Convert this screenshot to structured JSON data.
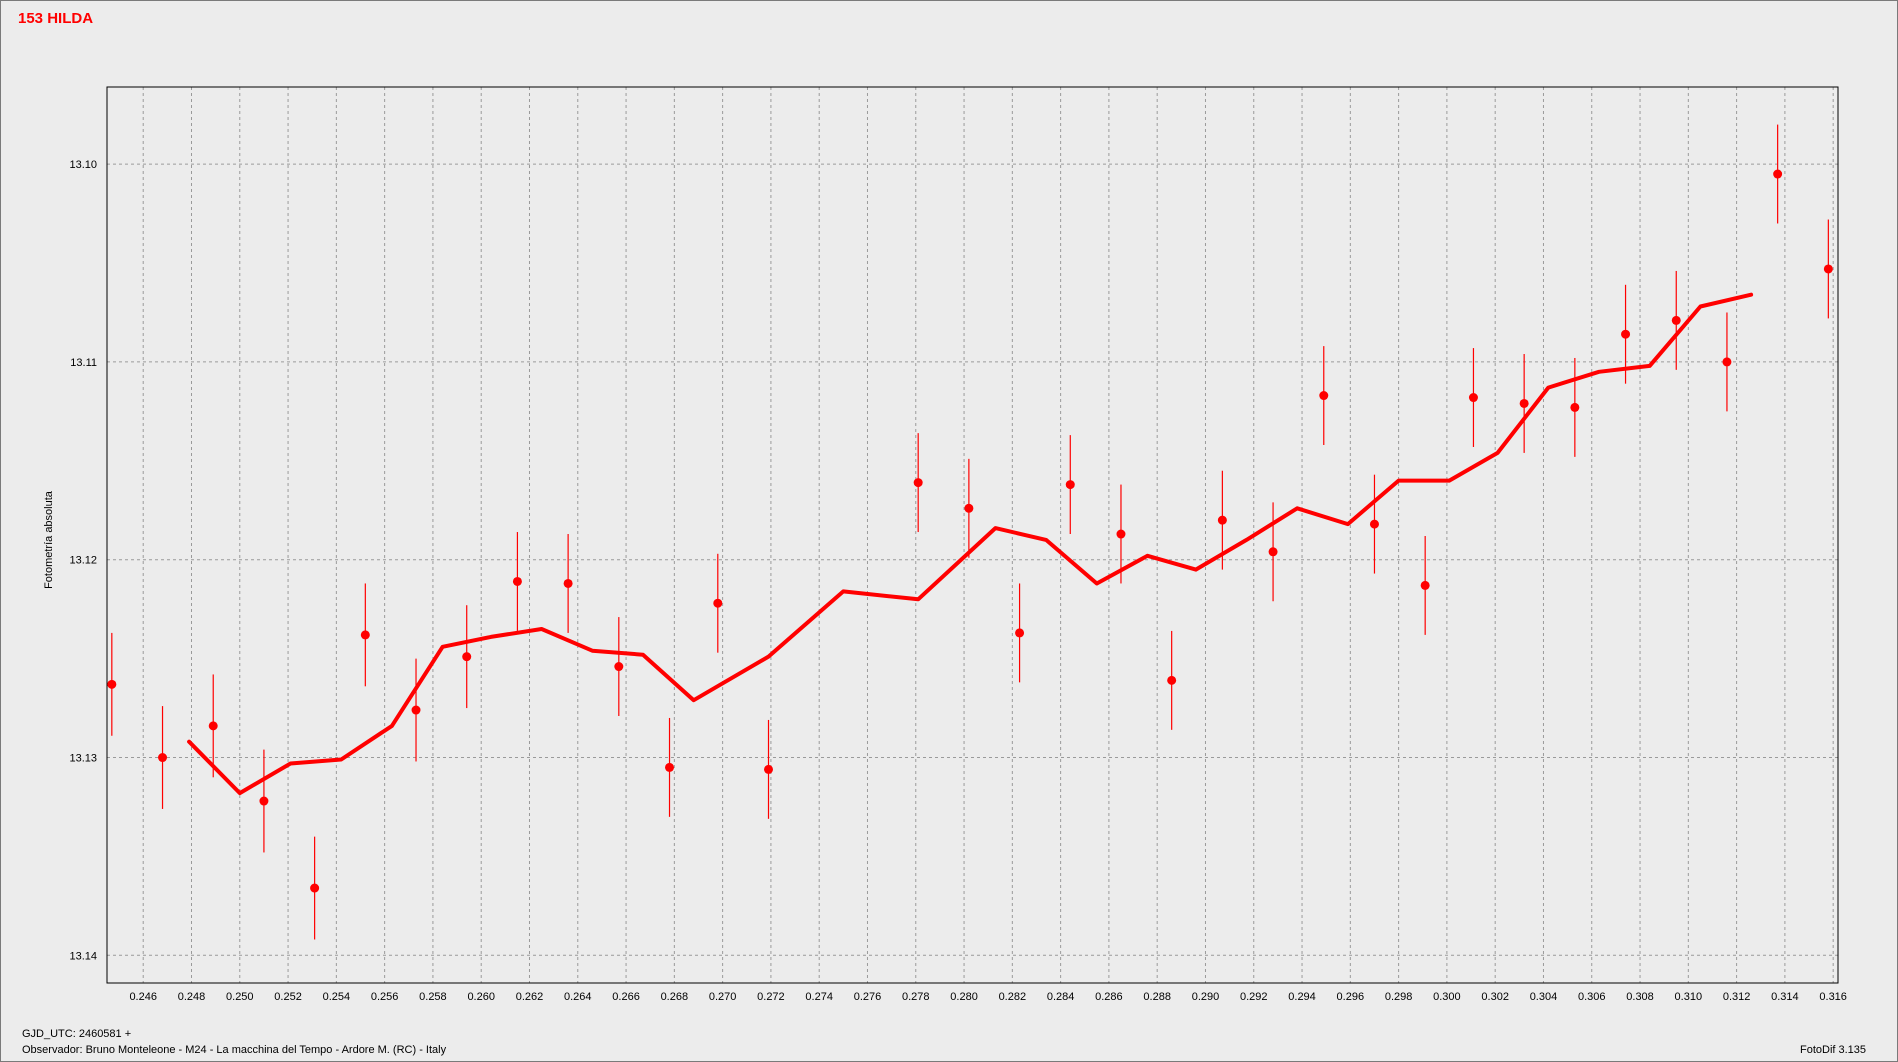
{
  "window": {
    "title": "153 HILDA"
  },
  "footer": {
    "date": "GJD_UTC: 2460581 +",
    "observer": "Observador: Bruno Monteleone - M24 - La macchina del Tempo - Ardore M. (RC) - Italy",
    "software": "FotoDif 3.135"
  },
  "colors": {
    "series": "#ff0000",
    "grid": "#9a9a9a",
    "plot_bg": "#ececec"
  },
  "chart_data": {
    "type": "scatter",
    "title": "153 HILDA",
    "xlabel": "GJD_UTC: 2460581 +",
    "ylabel": "Fotometría absoluta",
    "xlim": [
      0.2445,
      0.3162
    ],
    "ylim": [
      13.1414,
      13.0961
    ],
    "y_inverted": true,
    "grid": true,
    "x_ticks": [
      "0.246",
      "0.248",
      "0.250",
      "0.252",
      "0.254",
      "0.256",
      "0.258",
      "0.260",
      "0.262",
      "0.264",
      "0.266",
      "0.268",
      "0.270",
      "0.272",
      "0.274",
      "0.276",
      "0.278",
      "0.280",
      "0.282",
      "0.284",
      "0.286",
      "0.288",
      "0.290",
      "0.292",
      "0.294",
      "0.296",
      "0.298",
      "0.300",
      "0.302",
      "0.304",
      "0.306",
      "0.308",
      "0.310",
      "0.312",
      "0.314",
      "0.316"
    ],
    "y_ticks": [
      "13.10",
      "13.11",
      "13.12",
      "13.13",
      "13.14"
    ],
    "series": [
      {
        "type": "scatter_errorbar",
        "color": "#ff0000",
        "points": [
          {
            "x": 0.2447,
            "y": 13.1263,
            "err": 0.0026
          },
          {
            "x": 0.2468,
            "y": 13.13,
            "err": 0.0026
          },
          {
            "x": 0.2489,
            "y": 13.1284,
            "err": 0.0026
          },
          {
            "x": 0.251,
            "y": 13.1322,
            "err": 0.0026
          },
          {
            "x": 0.2531,
            "y": 13.1366,
            "err": 0.0026
          },
          {
            "x": 0.2552,
            "y": 13.1238,
            "err": 0.0026
          },
          {
            "x": 0.2573,
            "y": 13.1276,
            "err": 0.0026
          },
          {
            "x": 0.2594,
            "y": 13.1249,
            "err": 0.0026
          },
          {
            "x": 0.2615,
            "y": 13.1211,
            "err": 0.0025
          },
          {
            "x": 0.2636,
            "y": 13.1212,
            "err": 0.0025
          },
          {
            "x": 0.2657,
            "y": 13.1254,
            "err": 0.0025
          },
          {
            "x": 0.2678,
            "y": 13.1305,
            "err": 0.0025
          },
          {
            "x": 0.2698,
            "y": 13.1222,
            "err": 0.0025
          },
          {
            "x": 0.2719,
            "y": 13.1306,
            "err": 0.0025
          },
          {
            "x": 0.2781,
            "y": 13.1161,
            "err": 0.0025
          },
          {
            "x": 0.2802,
            "y": 13.1174,
            "err": 0.0025
          },
          {
            "x": 0.2823,
            "y": 13.1237,
            "err": 0.0025
          },
          {
            "x": 0.2844,
            "y": 13.1162,
            "err": 0.0025
          },
          {
            "x": 0.2865,
            "y": 13.1187,
            "err": 0.0025
          },
          {
            "x": 0.2886,
            "y": 13.1261,
            "err": 0.0025
          },
          {
            "x": 0.2907,
            "y": 13.118,
            "err": 0.0025
          },
          {
            "x": 0.2928,
            "y": 13.1196,
            "err": 0.0025
          },
          {
            "x": 0.2949,
            "y": 13.1117,
            "err": 0.0025
          },
          {
            "x": 0.297,
            "y": 13.1182,
            "err": 0.0025
          },
          {
            "x": 0.2991,
            "y": 13.1213,
            "err": 0.0025
          },
          {
            "x": 0.3011,
            "y": 13.1118,
            "err": 0.0025
          },
          {
            "x": 0.3032,
            "y": 13.1121,
            "err": 0.0025
          },
          {
            "x": 0.3053,
            "y": 13.1123,
            "err": 0.0025
          },
          {
            "x": 0.3074,
            "y": 13.1086,
            "err": 0.0025
          },
          {
            "x": 0.3095,
            "y": 13.1079,
            "err": 0.0025
          },
          {
            "x": 0.3116,
            "y": 13.11,
            "err": 0.0025
          },
          {
            "x": 0.3137,
            "y": 13.1005,
            "err": 0.0025
          },
          {
            "x": 0.3158,
            "y": 13.1053,
            "err": 0.0025
          }
        ]
      },
      {
        "type": "line",
        "color": "#ff0000",
        "points": [
          {
            "x": 0.2479,
            "y": 13.1292
          },
          {
            "x": 0.25,
            "y": 13.1318
          },
          {
            "x": 0.2521,
            "y": 13.1303
          },
          {
            "x": 0.2542,
            "y": 13.1301
          },
          {
            "x": 0.2563,
            "y": 13.1284
          },
          {
            "x": 0.2584,
            "y": 13.1244
          },
          {
            "x": 0.2604,
            "y": 13.1239
          },
          {
            "x": 0.2625,
            "y": 13.1235
          },
          {
            "x": 0.2646,
            "y": 13.1246
          },
          {
            "x": 0.2667,
            "y": 13.1248
          },
          {
            "x": 0.2688,
            "y": 13.1271
          },
          {
            "x": 0.2719,
            "y": 13.1249
          },
          {
            "x": 0.275,
            "y": 13.1216
          },
          {
            "x": 0.2781,
            "y": 13.122
          },
          {
            "x": 0.2813,
            "y": 13.1184
          },
          {
            "x": 0.2834,
            "y": 13.119
          },
          {
            "x": 0.2855,
            "y": 13.1212
          },
          {
            "x": 0.2876,
            "y": 13.1198
          },
          {
            "x": 0.2896,
            "y": 13.1205
          },
          {
            "x": 0.2917,
            "y": 13.119
          },
          {
            "x": 0.2938,
            "y": 13.1174
          },
          {
            "x": 0.2959,
            "y": 13.1182
          },
          {
            "x": 0.298,
            "y": 13.116
          },
          {
            "x": 0.3001,
            "y": 13.116
          },
          {
            "x": 0.3021,
            "y": 13.1146
          },
          {
            "x": 0.3042,
            "y": 13.1113
          },
          {
            "x": 0.3063,
            "y": 13.1105
          },
          {
            "x": 0.3084,
            "y": 13.1102
          },
          {
            "x": 0.3105,
            "y": 13.1072
          },
          {
            "x": 0.3126,
            "y": 13.1066
          }
        ]
      }
    ]
  }
}
